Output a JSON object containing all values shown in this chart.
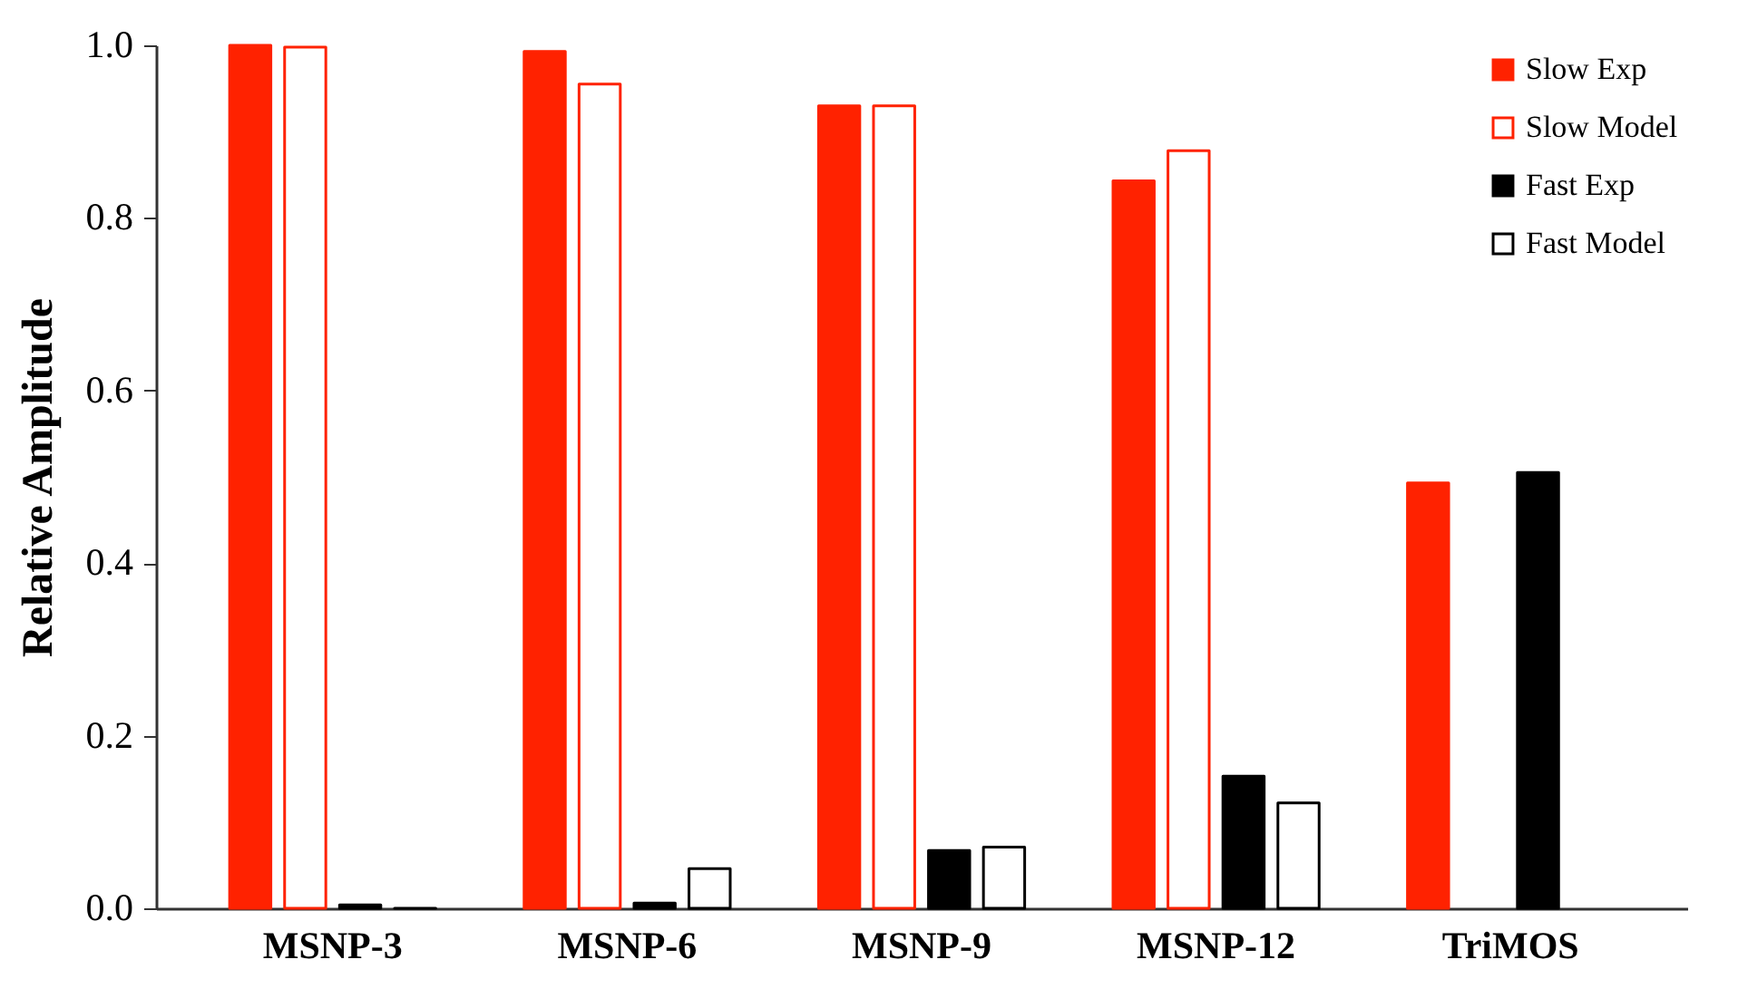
{
  "chart_data": {
    "type": "bar",
    "ylabel": "Relative Amplitude",
    "categories": [
      "MSNP-3",
      "MSNP-6",
      "MSNP-9",
      "MSNP-12",
      "TriMOS"
    ],
    "series": [
      {
        "name": "Slow Exp",
        "color": "#ff2200",
        "values": [
          1.0,
          0.993,
          0.93,
          0.843,
          0.493
        ]
      },
      {
        "name": "Slow Model",
        "color": "#ff2200",
        "values": [
          0.998,
          0.955,
          0.93,
          0.878,
          null
        ]
      },
      {
        "name": "Fast Exp",
        "color": "#000000",
        "values": [
          0.004,
          0.006,
          0.067,
          0.153,
          0.505
        ]
      },
      {
        "name": "Fast Model",
        "color": "#000000",
        "values": [
          0.0,
          0.046,
          0.071,
          0.122,
          null
        ]
      }
    ],
    "ylim": [
      0.0,
      1.0
    ],
    "yticks": [
      {
        "value": 0,
        "label": "0.0"
      },
      0.2,
      0.4,
      0.6,
      0.8,
      {
        "value": 1,
        "label": "1.0"
      }
    ],
    "grid": false,
    "legend": "top right"
  }
}
